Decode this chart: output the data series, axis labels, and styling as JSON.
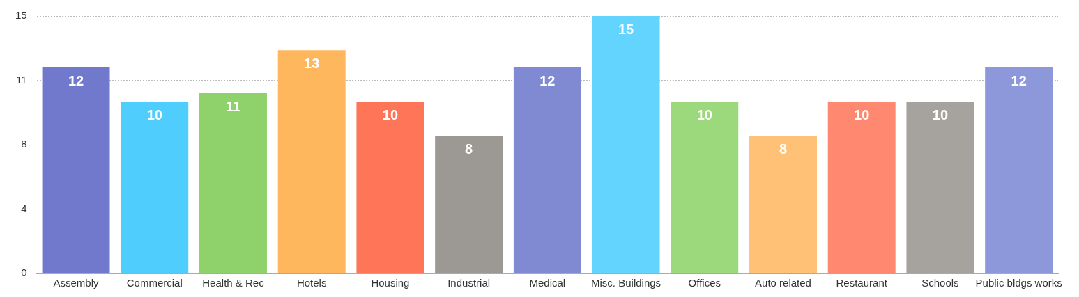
{
  "chart_data": {
    "type": "bar",
    "categories": [
      "Assembly",
      "Commercial",
      "Health & Rec",
      "Hotels",
      "Housing",
      "Industrial",
      "Medical",
      "Misc. Buildings",
      "Offices",
      "Auto related",
      "Restaurant",
      "Schools",
      "Public bldgs works"
    ],
    "values": [
      12,
      10,
      10.5,
      13,
      10,
      8,
      12,
      15,
      10,
      8,
      10,
      10,
      12
    ],
    "value_labels": [
      "12",
      "10",
      "11",
      "13",
      "10",
      "8",
      "12",
      "15",
      "10",
      "8",
      "10",
      "10",
      "12"
    ],
    "colors": [
      "#7079cc",
      "#4fcdfd",
      "#8fd16a",
      "#feb75c",
      "#fe7558",
      "#9c9894",
      "#808ad3",
      "#62d4fd",
      "#9cd87c",
      "#fec175",
      "#fe8870",
      "#a6a39f",
      "#8d98da"
    ],
    "ylim": [
      0,
      15
    ],
    "yticks": [
      0,
      {
        "value": 3.75,
        "label": "4"
      },
      {
        "value": 7.5,
        "label": "8"
      },
      {
        "value": 11.25,
        "label": "11"
      },
      15
    ],
    "grid": "y",
    "legend": false
  }
}
